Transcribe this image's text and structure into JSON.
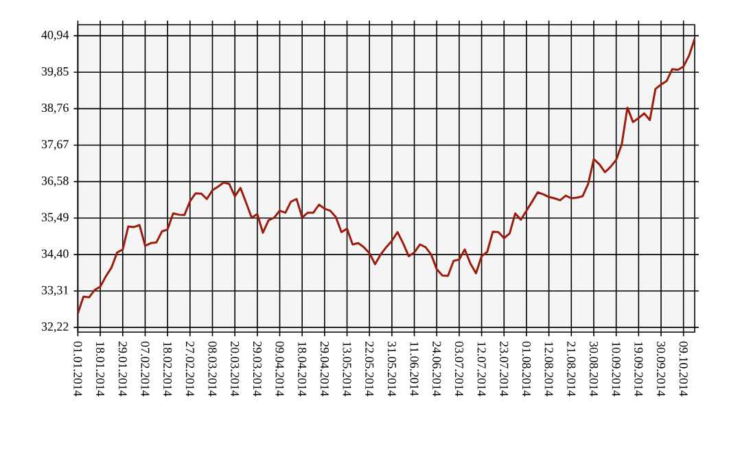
{
  "chart_data": {
    "type": "line",
    "categories": [
      "01.01.2014",
      null,
      null,
      null,
      "18.01.2014",
      null,
      null,
      null,
      "29.01.2014",
      null,
      null,
      null,
      "07.02.2014",
      null,
      null,
      null,
      "18.02.2014",
      null,
      null,
      null,
      "27.02.2014",
      null,
      null,
      null,
      "08.03.2014",
      null,
      null,
      null,
      "20.03.2014",
      null,
      null,
      null,
      "29.03.2014",
      null,
      null,
      null,
      "09.04.2014",
      null,
      null,
      null,
      "18.04.2014",
      null,
      null,
      null,
      "29.04.2014",
      null,
      null,
      null,
      "13.05.2014",
      null,
      null,
      null,
      "22.05.2014",
      null,
      null,
      null,
      "31.05.2014",
      null,
      null,
      null,
      "11.06.2014",
      null,
      null,
      null,
      "24.06.2014",
      null,
      null,
      null,
      "03.07.2014",
      null,
      null,
      null,
      "12.07.2014",
      null,
      null,
      null,
      "23.07.2014",
      null,
      null,
      null,
      "01.08.2014",
      null,
      null,
      null,
      "12.08.2014",
      null,
      null,
      null,
      "21.08.2014",
      null,
      null,
      null,
      "30.08.2014",
      null,
      null,
      null,
      "10.09.2014",
      null,
      null,
      null,
      "19.09.2014",
      null,
      null,
      null,
      "30.09.2014",
      null,
      null,
      null,
      "09.10.2014",
      null,
      null
    ],
    "values": [
      32.64,
      33.14,
      33.12,
      33.34,
      33.44,
      33.75,
      34.01,
      34.46,
      34.55,
      35.24,
      35.22,
      35.28,
      34.66,
      34.74,
      34.76,
      35.09,
      35.15,
      35.63,
      35.59,
      35.58,
      35.99,
      36.23,
      36.22,
      36.06,
      36.32,
      36.43,
      36.55,
      36.51,
      36.14,
      36.39,
      35.95,
      35.5,
      35.61,
      35.05,
      35.42,
      35.5,
      35.71,
      35.65,
      35.98,
      36.06,
      35.51,
      35.65,
      35.65,
      35.89,
      35.77,
      35.71,
      35.52,
      35.07,
      35.17,
      34.7,
      34.74,
      34.62,
      34.44,
      34.11,
      34.4,
      34.62,
      34.81,
      35.07,
      34.74,
      34.35,
      34.46,
      34.7,
      34.62,
      34.4,
      33.96,
      33.77,
      33.76,
      34.21,
      34.25,
      34.55,
      34.13,
      33.84,
      34.35,
      34.48,
      35.08,
      35.07,
      34.89,
      35.03,
      35.63,
      35.44,
      35.71,
      35.98,
      36.26,
      36.2,
      36.12,
      36.08,
      36.02,
      36.16,
      36.08,
      36.1,
      36.14,
      36.51,
      37.25,
      37.1,
      36.86,
      37.02,
      37.23,
      37.7,
      38.79,
      38.36,
      38.48,
      38.62,
      38.42,
      39.35,
      39.48,
      39.59,
      39.94,
      39.92,
      40.02,
      40.35,
      40.85
    ],
    "color": "#9b1c0c",
    "ylim": [
      32.08,
      41.27
    ],
    "yticks": [
      {
        "value": 32.22,
        "label": "32,22"
      },
      {
        "value": 33.31,
        "label": "33,31"
      },
      {
        "value": 34.4,
        "label": "34,40"
      },
      {
        "value": 35.49,
        "label": "35,49"
      },
      {
        "value": 36.58,
        "label": "36,58"
      },
      {
        "value": 37.67,
        "label": "37,67"
      },
      {
        "value": 38.76,
        "label": "38,76"
      },
      {
        "value": 39.85,
        "label": "39,85"
      },
      {
        "value": 40.94,
        "label": "40,94"
      }
    ],
    "grid": true
  }
}
